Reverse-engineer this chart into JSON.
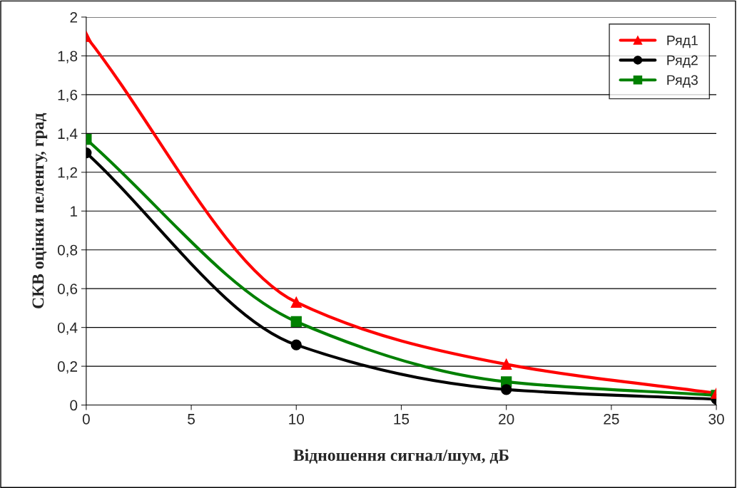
{
  "chart_data": {
    "type": "line",
    "xlabel": "Відношення сигнал/шум, дБ",
    "ylabel": "СКВ оцінки пеленгу, град",
    "x": [
      0,
      10,
      20,
      30
    ],
    "series": [
      {
        "name": "Ряд1",
        "color": "#ff0000",
        "marker": "triangle",
        "values": [
          1.9,
          0.53,
          0.21,
          0.06
        ]
      },
      {
        "name": "Ряд2",
        "color": "#000000",
        "marker": "circle",
        "values": [
          1.3,
          0.31,
          0.08,
          0.03
        ]
      },
      {
        "name": "Ряд3",
        "color": "#008000",
        "marker": "square",
        "values": [
          1.37,
          0.43,
          0.12,
          0.05
        ]
      }
    ],
    "xlim": [
      0,
      30
    ],
    "xticks": [
      0,
      5,
      10,
      15,
      20,
      25,
      30
    ],
    "ylim": [
      0,
      2
    ],
    "yticks": [
      0,
      {
        "value": 0.2,
        "label": "0,2"
      },
      {
        "value": 0.4,
        "label": "0,4"
      },
      {
        "value": 0.6,
        "label": "0,6"
      },
      {
        "value": 0.8,
        "label": "0,8"
      },
      1,
      {
        "value": 1.2,
        "label": "1,2"
      },
      {
        "value": 1.4,
        "label": "1,4"
      },
      {
        "value": 1.6,
        "label": "1,6"
      },
      {
        "value": 1.8,
        "label": "1,8"
      },
      2
    ],
    "grid": "y",
    "legend": "top right",
    "line_style": "solid"
  }
}
